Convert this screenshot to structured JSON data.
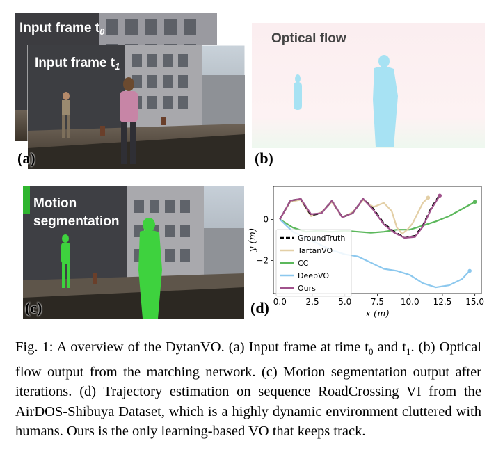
{
  "panels": {
    "a": {
      "label": "(a)",
      "frame0_label": "Input frame t",
      "frame0_sub": "0",
      "frame1_label": "Input frame t",
      "frame1_sub": "1"
    },
    "b": {
      "label": "(b)",
      "title": "Optical flow"
    },
    "c": {
      "label": "(c)",
      "title_line1": "Motion",
      "title_line2": "segmentation"
    },
    "d": {
      "label": "(d)"
    }
  },
  "chart_data": {
    "type": "line",
    "xlabel": "x (m)",
    "ylabel": "y (m)",
    "xlim": [
      -0.5,
      15.5
    ],
    "ylim": [
      -3.6,
      1.6
    ],
    "xticks": [
      0.0,
      2.5,
      5.0,
      7.5,
      10.0,
      12.5,
      15.0
    ],
    "xtick_labels": [
      "0.0",
      "2.5",
      "5.0",
      "7.5",
      "10.0",
      "12.5",
      "15.0"
    ],
    "yticks": [
      0,
      -2
    ],
    "ytick_labels": [
      "0",
      "−2"
    ],
    "grid": false,
    "legend_position": "lower-left",
    "series": [
      {
        "name": "GroundTruth",
        "color": "#000000",
        "dashed": true,
        "x": [
          0,
          0.8,
          1.6,
          2.4,
          3.2,
          4.0,
          4.8,
          5.6,
          6.4,
          7.2,
          8.0,
          8.8,
          9.6,
          10.4,
          11.0,
          11.6,
          12.2
        ],
        "y": [
          0,
          0.9,
          1.0,
          0.2,
          0.3,
          0.9,
          0.1,
          0.3,
          1.0,
          0.5,
          -0.2,
          -0.6,
          -0.9,
          -0.8,
          -0.3,
          0.5,
          1.1
        ]
      },
      {
        "name": "TartanVO",
        "color": "#e3cfa6",
        "dashed": false,
        "x": [
          0,
          0.8,
          1.6,
          2.4,
          3.2,
          4.0,
          4.8,
          5.6,
          6.4,
          7.2,
          8.0,
          8.6,
          9.0,
          9.4,
          9.8,
          10.2,
          10.6,
          11.0,
          11.4
        ],
        "y": [
          0,
          0.85,
          0.95,
          0.15,
          0.35,
          0.85,
          0.1,
          0.35,
          0.95,
          0.6,
          0.8,
          0.4,
          -0.4,
          -0.7,
          -0.5,
          -0.2,
          0.3,
          0.8,
          1.05
        ]
      },
      {
        "name": "CC",
        "color": "#5cb85c",
        "dashed": false,
        "x": [
          0,
          1.0,
          2.0,
          3.0,
          4.0,
          5.0,
          6.0,
          7.0,
          8.0,
          9.0,
          10.0,
          11.0,
          12.0,
          13.0,
          14.0,
          15.0
        ],
        "y": [
          0,
          -0.4,
          -0.6,
          -0.55,
          -0.6,
          -0.55,
          -0.6,
          -0.65,
          -0.6,
          -0.5,
          -0.5,
          -0.3,
          -0.1,
          0.15,
          0.5,
          0.85
        ]
      },
      {
        "name": "DeepVO",
        "color": "#8cc8ee",
        "dashed": false,
        "x": [
          0,
          1.0,
          2.0,
          3.0,
          4.0,
          5.0,
          6.0,
          7.0,
          8.0,
          9.0,
          10.0,
          11.0,
          12.0,
          13.0,
          14.0,
          14.6
        ],
        "y": [
          0,
          -0.6,
          -0.9,
          -1.2,
          -1.5,
          -1.7,
          -1.8,
          -2.1,
          -2.4,
          -2.5,
          -2.7,
          -3.1,
          -3.3,
          -3.2,
          -2.9,
          -2.5
        ]
      },
      {
        "name": "Ours",
        "color": "#a0528c",
        "dashed": false,
        "x": [
          0,
          0.8,
          1.6,
          2.4,
          3.2,
          4.0,
          4.8,
          5.6,
          6.4,
          7.2,
          8.0,
          8.8,
          9.6,
          10.4,
          11.0,
          11.6,
          12.3
        ],
        "y": [
          0,
          0.9,
          1.0,
          0.25,
          0.3,
          0.9,
          0.1,
          0.3,
          1.0,
          0.45,
          -0.25,
          -0.65,
          -0.9,
          -0.85,
          -0.35,
          0.45,
          1.15
        ]
      }
    ]
  },
  "caption": {
    "prefix": "Fig. 1: A overview of the DytanVO. (a) Input frame at time t",
    "sub0": "0",
    "mid": " and t",
    "sub1": "1",
    "rest": ". (b) Optical flow output from the matching network. (c) Motion segmentation output after iterations. (d) Trajectory estimation on sequence RoadCrossing VI from the AirDOS-Shibuya Dataset, which is a highly dynamic environment cluttered with humans. Ours is the only learning-based VO that keeps track."
  }
}
